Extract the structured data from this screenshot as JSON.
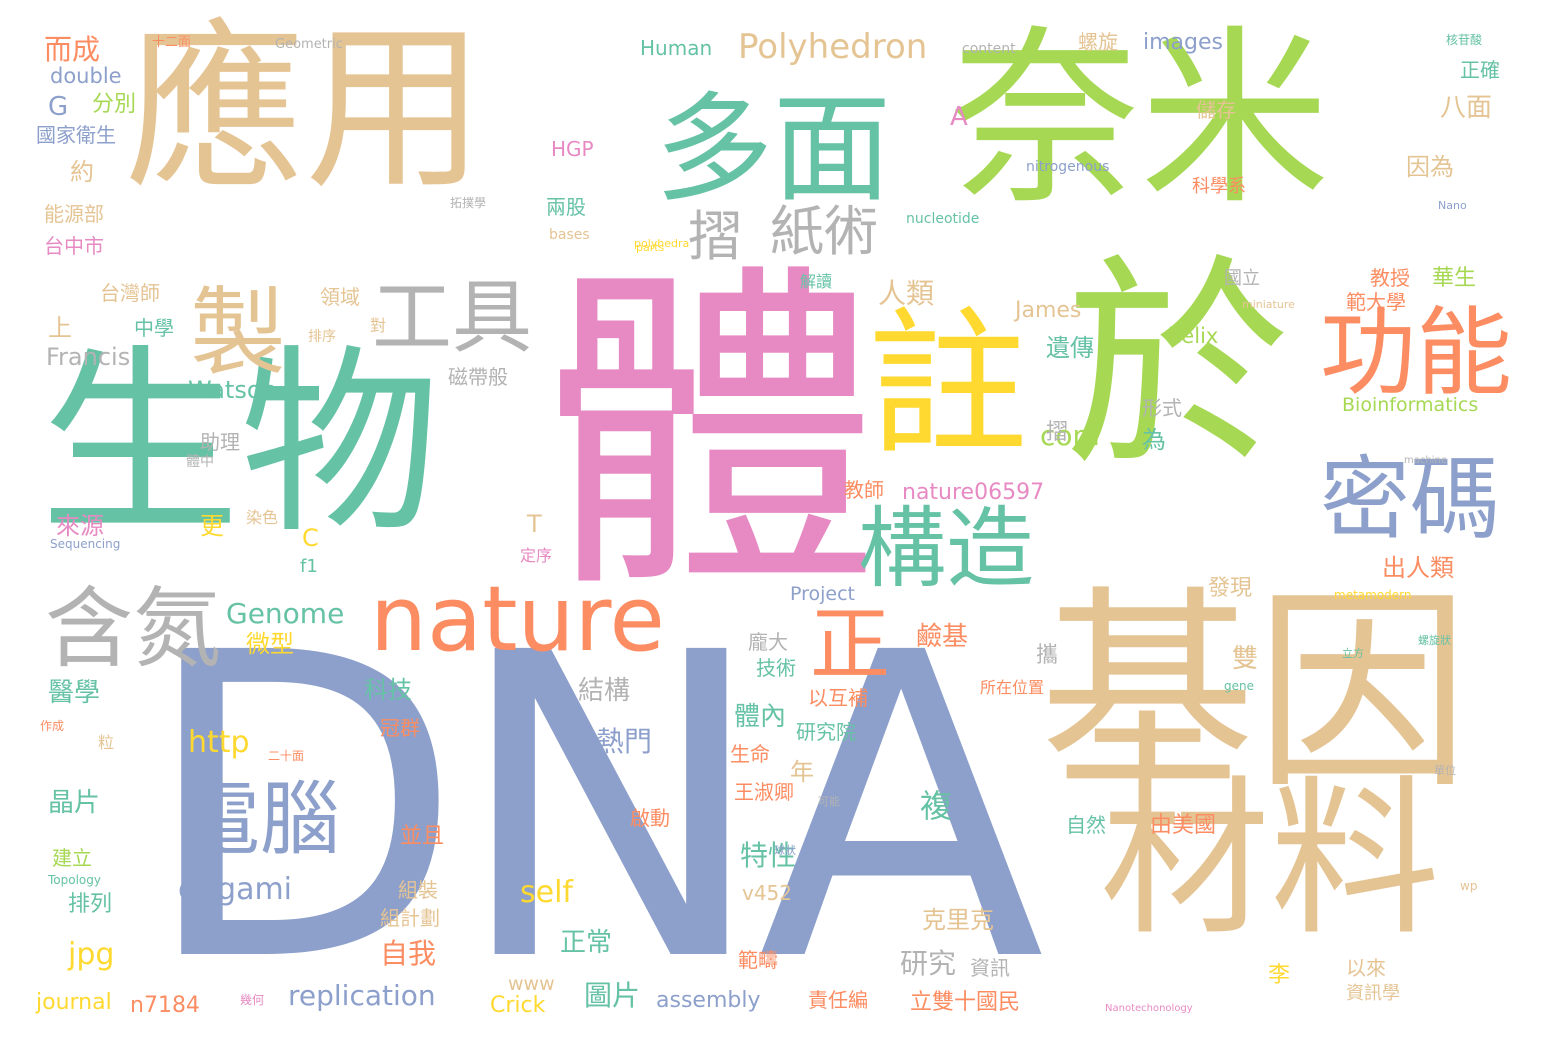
{
  "colors": {
    "background": "#ffffff",
    "teal": "#66c2a5",
    "orange": "#fc8d62",
    "blue": "#8da0cb",
    "pink": "#e78ac3",
    "green": "#a6d854",
    "yellow": "#ffd92f",
    "tan": "#e5c494",
    "grey": "#b3b3b3"
  },
  "words": [
    "DNA",
    "體",
    "生物",
    "應用",
    "奈米",
    "於",
    "基因",
    "材料",
    "多面",
    "註",
    "功能",
    "密碼",
    "構造",
    "製",
    "工具",
    "nature",
    "含氮",
    "電腦",
    "正",
    "摺",
    "紙術",
    "Polyhedron",
    "origami",
    "Genome",
    "replication",
    "http",
    "self",
    "jpg",
    "com",
    "nature06597",
    "Bioinformatics",
    "James",
    "Watson",
    "Francis",
    "Crick",
    "helix",
    "images",
    "Human",
    "HGP",
    "Project",
    "journal",
    "n7184",
    "www",
    "assembly",
    "v452",
    "double",
    "G",
    "A",
    "C",
    "T",
    "f1",
    "content",
    "Geometric",
    "nitrogenous",
    "nucleotide",
    "bases",
    "polyhedra",
    "parts",
    "Nano",
    "miniature",
    "machine",
    "metamodern",
    "gene",
    "Sequencing",
    "Topology",
    "wp",
    "Nanotechonology",
    "而成",
    "十二面",
    "分別",
    "國家衛生",
    "約",
    "能源部",
    "台中市",
    "台灣師",
    "上",
    "中學",
    "領域",
    "來源",
    "更",
    "醫學",
    "晶片",
    "建立",
    "排列",
    "微型",
    "科技",
    "冠群",
    "熱門",
    "結構",
    "圖片",
    "正常",
    "自我",
    "研究",
    "資訊",
    "立雙十國民",
    "責任編",
    "範疇",
    "特性",
    "複",
    "鹼基",
    "教師",
    "磁帶般",
    "助理",
    "拓撲學",
    "兩股",
    "螺旋",
    "儲存",
    "國立",
    "人類",
    "遺傳",
    "形式",
    "為",
    "出人類",
    "發現",
    "華生",
    "教授",
    "範大學",
    "正確",
    "八面",
    "因為",
    "科學系",
    "以互補",
    "研究院",
    "生命",
    "王淑卿",
    "並且",
    "組裝",
    "組計劃",
    "克里克",
    "由美國",
    "自然",
    "李",
    "以來",
    "資訊學",
    "雙",
    "體內",
    "龐大",
    "技術",
    "年",
    "啟動",
    "解讀",
    "對",
    "排序",
    "二十面",
    "定序",
    "染色",
    "體中",
    "立方",
    "核苷酸",
    "所在位置",
    "攜",
    "摺",
    "球狀",
    "可能",
    "幾何",
    "單位",
    "作成",
    "粒",
    "螺旋狀"
  ]
}
